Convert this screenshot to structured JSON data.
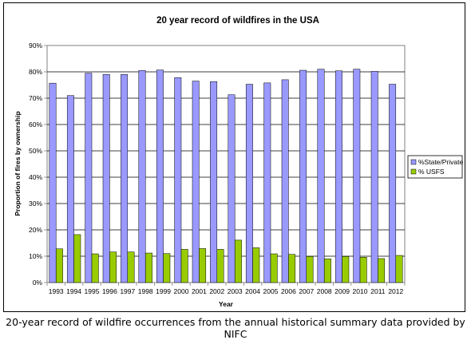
{
  "chart_data": {
    "type": "bar",
    "title": "20 year record of wildfires in the USA",
    "xlabel": "Year",
    "ylabel": "Proportion of fires by ownership",
    "categories": [
      "1993",
      "1994",
      "1995",
      "1996",
      "1997",
      "1998",
      "1999",
      "2000",
      "2001",
      "2002",
      "2003",
      "2004",
      "2005",
      "2006",
      "2007",
      "2008",
      "2009",
      "2010",
      "2011",
      "2012"
    ],
    "series": [
      {
        "name": "%State/Private",
        "color": "#9999ff",
        "values": [
          75.7,
          71.0,
          79.5,
          79.0,
          79.0,
          80.5,
          80.7,
          77.8,
          76.5,
          76.3,
          71.3,
          75.3,
          75.8,
          77.0,
          80.6,
          81.0,
          80.4,
          81.0,
          80.2,
          75.3
        ]
      },
      {
        "name": "% USFS",
        "color": "#99cc00",
        "values": [
          12.8,
          18.2,
          10.9,
          11.6,
          11.6,
          11.2,
          11.0,
          12.6,
          12.9,
          12.6,
          16.1,
          13.2,
          10.9,
          10.7,
          9.9,
          9.0,
          9.9,
          9.6,
          9.1,
          10.3
        ]
      }
    ],
    "yticks": [
      "0%",
      "10%",
      "20%",
      "30%",
      "40%",
      "50%",
      "60%",
      "70%",
      "80%",
      "90%"
    ],
    "ylim": [
      0,
      90
    ],
    "grid": true,
    "legend_position": "right"
  },
  "caption": "20-year record of wildfire occurrences from the annual historical summary data provided by NIFC"
}
